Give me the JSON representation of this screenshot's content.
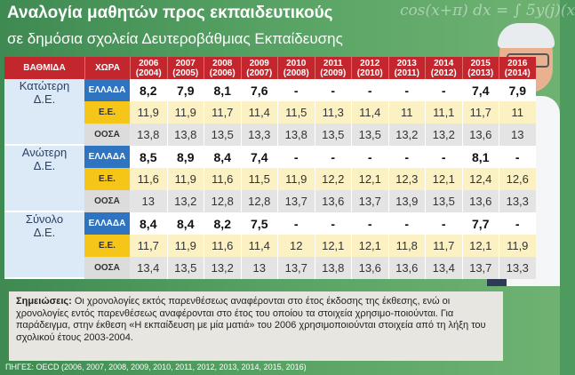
{
  "title": "Αναλογία μαθητών προς εκπαιδευτικούς",
  "subtitle": "σε δημόσια σχολεία Δευτεροβάθμιας Εκπαίδευσης",
  "board_text": "cos(x+π) dx = ∫ 5y(j)(x",
  "table": {
    "header_level": "ΒΑΘΜΙΔΑ",
    "header_country": "ΧΩΡΑ",
    "years": [
      [
        "2006",
        "(2004)"
      ],
      [
        "2007",
        "(2005)"
      ],
      [
        "2008",
        "(2006)"
      ],
      [
        "2009",
        "(2007)"
      ],
      [
        "2010",
        "(2008)"
      ],
      [
        "2011",
        "(2009)"
      ],
      [
        "2012",
        "(2010)"
      ],
      [
        "2013",
        "(2011)"
      ],
      [
        "2014",
        "(2012)"
      ],
      [
        "2015",
        "(2013)"
      ],
      [
        "2016",
        "(2014)"
      ]
    ],
    "groups": [
      {
        "level": [
          "Κατώτερη",
          "Δ.Ε."
        ],
        "rows": [
          {
            "country": "ΕΛΛΑΔΑ",
            "kind": "greece",
            "values": [
              "8,2",
              "7,9",
              "8,1",
              "7,6",
              "-",
              "-",
              "-",
              "-",
              "-",
              "7,4",
              "7,9"
            ]
          },
          {
            "country": "Ε.Ε.",
            "kind": "ee",
            "values": [
              "11,9",
              "11,9",
              "11,7",
              "11,4",
              "11,5",
              "11,3",
              "11,4",
              "11",
              "11,1",
              "11,7",
              "11"
            ]
          },
          {
            "country": "ΟΟΣΑ",
            "kind": "oecd",
            "values": [
              "13,8",
              "13,8",
              "13,5",
              "13,3",
              "13,8",
              "13,5",
              "13,5",
              "13,2",
              "13,2",
              "13,6",
              "13"
            ]
          }
        ]
      },
      {
        "level": [
          "Ανώτερη",
          "Δ.Ε."
        ],
        "rows": [
          {
            "country": "ΕΛΛΑΔΑ",
            "kind": "greece",
            "values": [
              "8,5",
              "8,9",
              "8,4",
              "7,4",
              "-",
              "-",
              "-",
              "-",
              "-",
              "8,1",
              "-"
            ]
          },
          {
            "country": "Ε.Ε.",
            "kind": "ee",
            "values": [
              "11,6",
              "11,9",
              "11,6",
              "11,5",
              "11,9",
              "12,2",
              "12,1",
              "12,3",
              "12,1",
              "12,4",
              "12,6"
            ]
          },
          {
            "country": "ΟΟΣΑ",
            "kind": "oecd",
            "values": [
              "13",
              "13,2",
              "12,8",
              "12,8",
              "13,7",
              "13,6",
              "13,7",
              "13,9",
              "13,5",
              "13,6",
              "13,3"
            ]
          }
        ]
      },
      {
        "level": [
          "Σύνολο",
          "Δ.Ε."
        ],
        "rows": [
          {
            "country": "ΕΛΛΑΔΑ",
            "kind": "greece",
            "values": [
              "8,4",
              "8,4",
              "8,2",
              "7,5",
              "-",
              "-",
              "-",
              "-",
              "-",
              "7,7",
              "-"
            ]
          },
          {
            "country": "Ε.Ε.",
            "kind": "ee",
            "values": [
              "11,7",
              "11,9",
              "11,6",
              "11,4",
              "12",
              "12,1",
              "12,1",
              "11,8",
              "11,7",
              "12,1",
              "11,9"
            ]
          },
          {
            "country": "ΟΟΣΑ",
            "kind": "oecd",
            "values": [
              "13,4",
              "13,5",
              "13,2",
              "13",
              "13,7",
              "13,8",
              "13,6",
              "13,6",
              "13,4",
              "13,7",
              "13,3"
            ]
          }
        ]
      }
    ]
  },
  "notes": {
    "label": "Σημειώσεις:",
    "text": "Οι χρονολογίες εκτός παρενθέσεως αναφέρονται στο έτος έκδοσης της έκθεσης, ενώ οι χρονολογίες εντός παρενθέσεως αναφέρονται στο έτος του οποίου τα στοιχεία χρησιμο-ποιούνται. Για παράδειγμα, στην έκθεση «Η εκπαίδευση με μία ματιά» του 2006 χρησιμοποιούνται στοιχεία από τη λήξη του σχολικού έτους 2003-2004."
  },
  "sources": "ΠΗΓΕΣ: OECD (2006, 2007, 2008, 2009, 2010, 2011, 2012, 2013, 2014, 2015, 2016)",
  "chart_data": {
    "type": "table",
    "title": "Αναλογία μαθητών προς εκπαιδευτικούς",
    "subtitle": "σε δημόσια σχολεία Δευτεροβάθμιας Εκπαίδευσης",
    "columns": [
      "2006 (2004)",
      "2007 (2005)",
      "2008 (2006)",
      "2009 (2007)",
      "2010 (2008)",
      "2011 (2009)",
      "2012 (2010)",
      "2013 (2011)",
      "2014 (2012)",
      "2015 (2013)",
      "2016 (2014)"
    ],
    "series": [
      {
        "name": "Κατώτερη Δ.Ε. ΕΛΛΑΔΑ",
        "values": [
          8.2,
          7.9,
          8.1,
          7.6,
          null,
          null,
          null,
          null,
          null,
          7.4,
          7.9
        ]
      },
      {
        "name": "Κατώτερη Δ.Ε. Ε.Ε.",
        "values": [
          11.9,
          11.9,
          11.7,
          11.4,
          11.5,
          11.3,
          11.4,
          11,
          11.1,
          11.7,
          11
        ]
      },
      {
        "name": "Κατώτερη Δ.Ε. ΟΟΣΑ",
        "values": [
          13.8,
          13.8,
          13.5,
          13.3,
          13.8,
          13.5,
          13.5,
          13.2,
          13.2,
          13.6,
          13
        ]
      },
      {
        "name": "Ανώτερη Δ.Ε. ΕΛΛΑΔΑ",
        "values": [
          8.5,
          8.9,
          8.4,
          7.4,
          null,
          null,
          null,
          null,
          null,
          8.1,
          null
        ]
      },
      {
        "name": "Ανώτερη Δ.Ε. Ε.Ε.",
        "values": [
          11.6,
          11.9,
          11.6,
          11.5,
          11.9,
          12.2,
          12.1,
          12.3,
          12.1,
          12.4,
          12.6
        ]
      },
      {
        "name": "Ανώτερη Δ.Ε. ΟΟΣΑ",
        "values": [
          13,
          13.2,
          12.8,
          12.8,
          13.7,
          13.6,
          13.7,
          13.9,
          13.5,
          13.6,
          13.3
        ]
      },
      {
        "name": "Σύνολο Δ.Ε. ΕΛΛΑΔΑ",
        "values": [
          8.4,
          8.4,
          8.2,
          7.5,
          null,
          null,
          null,
          null,
          null,
          7.7,
          null
        ]
      },
      {
        "name": "Σύνολο Δ.Ε. Ε.Ε.",
        "values": [
          11.7,
          11.9,
          11.6,
          11.4,
          12,
          12.1,
          12.1,
          11.8,
          11.7,
          12.1,
          11.9
        ]
      },
      {
        "name": "Σύνολο Δ.Ε. ΟΟΣΑ",
        "values": [
          13.4,
          13.5,
          13.2,
          13,
          13.7,
          13.8,
          13.6,
          13.6,
          13.4,
          13.7,
          13.3
        ]
      }
    ]
  }
}
